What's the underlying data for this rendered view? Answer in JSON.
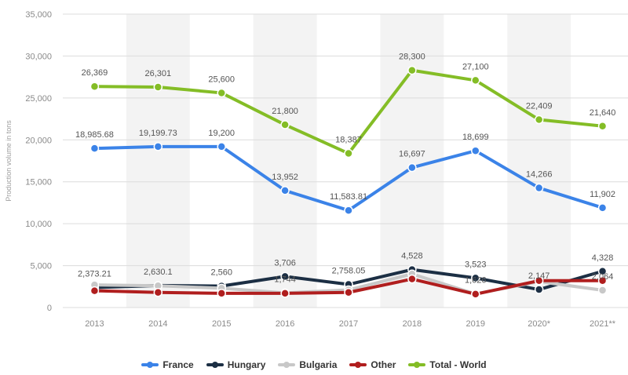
{
  "chart_data": {
    "type": "line",
    "ylabel": "Production volume in tons",
    "ylim": [
      0,
      35000
    ],
    "yticks": [
      "0",
      "5,000",
      "10,000",
      "15,000",
      "20,000",
      "25,000",
      "30,000",
      "35,000"
    ],
    "categories": [
      "2013",
      "2014",
      "2015",
      "2016",
      "2017",
      "2018",
      "2019",
      "2020*",
      "2021**"
    ],
    "grid": true,
    "legend_position": "bottom",
    "series": [
      {
        "name": "France",
        "color": "#3b83e8",
        "values": [
          18985.68,
          19199.73,
          19200,
          13952,
          11583.81,
          16697,
          18699,
          14266,
          11902
        ],
        "labels": [
          "18,985.68",
          "19,199.73",
          "19,200",
          "13,952",
          "11,583.81",
          "16,697",
          "18,699",
          "14,266",
          "11,902"
        ]
      },
      {
        "name": "Hungary",
        "color": "#1c2f44",
        "values": [
          2373.21,
          2630.1,
          2560,
          3706,
          2758.05,
          4528,
          3523,
          2147,
          4328
        ],
        "labels": [
          "2,373.21",
          "2,630.1",
          "2,560",
          "3,706",
          "2,758.05",
          "4,528",
          "3,523",
          "2,147",
          "4,328"
        ]
      },
      {
        "name": "Bulgaria",
        "color": "#c8c8c8",
        "values": [
          2700,
          2600,
          2300,
          1744,
          2100,
          4000,
          1626,
          3100,
          2064
        ],
        "labels": [
          "",
          "",
          "",
          "1,744",
          "",
          "",
          "1,626",
          "",
          "2,064"
        ]
      },
      {
        "name": "Other",
        "color": "#b01e1e",
        "values": [
          2000,
          1800,
          1700,
          1700,
          1800,
          3400,
          1600,
          3200,
          3200
        ],
        "labels": [
          "",
          "",
          "",
          "",
          "",
          "",
          "",
          "",
          ""
        ]
      },
      {
        "name": "Total - World",
        "color": "#84bd26",
        "values": [
          26369,
          26301,
          25600,
          21800,
          18387,
          28300,
          27100,
          22409,
          21640
        ],
        "labels": [
          "26,369",
          "26,301",
          "25,600",
          "21,800",
          "18,387",
          "28,300",
          "27,100",
          "22,409",
          "21,640"
        ]
      }
    ]
  }
}
